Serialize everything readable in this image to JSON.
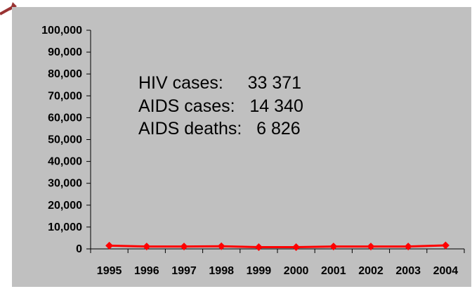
{
  "colors": {
    "background": "#c0c0c0",
    "series": "#ff0000",
    "axis": "#000000",
    "arrow": "#993333"
  },
  "annotation": {
    "rows": [
      "HIV cases:     33 371",
      "AIDS cases:   14 340",
      "AIDS deaths:   6 826"
    ]
  },
  "chart_data": {
    "type": "line",
    "title": "",
    "xlabel": "",
    "ylabel": "",
    "categories": [
      "1995",
      "1996",
      "1997",
      "1998",
      "1999",
      "2000",
      "2001",
      "2002",
      "2003",
      "2004"
    ],
    "series": [
      {
        "values": [
          1500,
          1100,
          1100,
          1200,
          800,
          800,
          1100,
          1100,
          1100,
          1600
        ],
        "marker": "diamond",
        "color": "#ff0000"
      }
    ],
    "ylim": [
      0,
      100000
    ],
    "yticks": [
      0,
      10000,
      20000,
      30000,
      40000,
      50000,
      60000,
      70000,
      80000,
      90000,
      100000
    ],
    "ytick_labels": [
      "0",
      "10,000",
      "20,000",
      "30,000",
      "40,000",
      "50,000",
      "60,000",
      "70,000",
      "80,000",
      "90,000",
      "100,000"
    ],
    "grid": false,
    "legend": "none"
  }
}
